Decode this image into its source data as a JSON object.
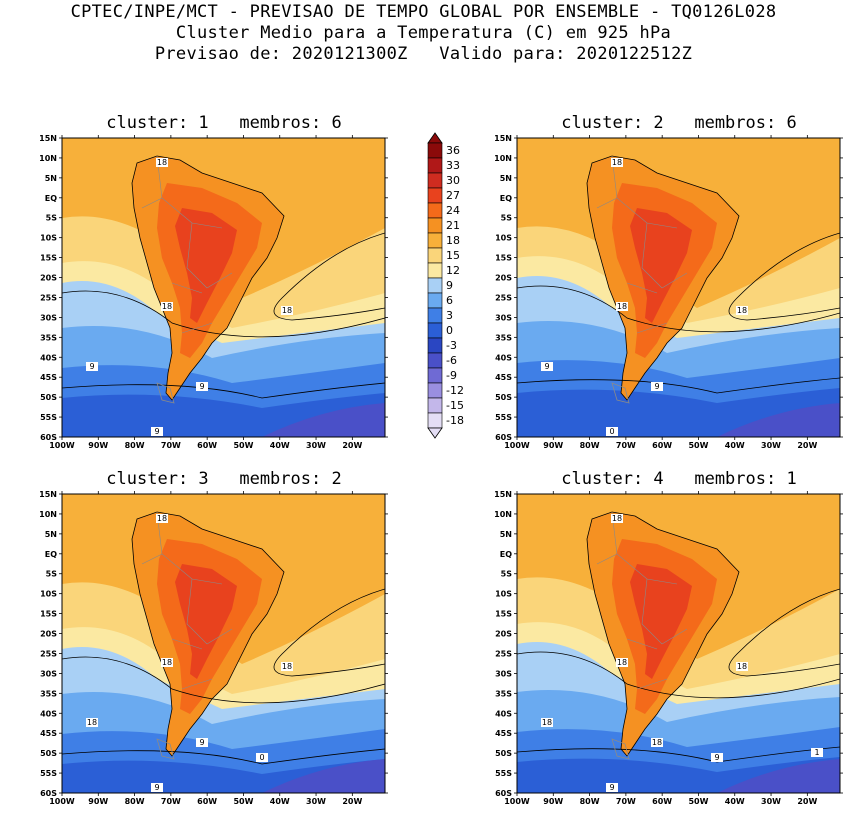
{
  "header": {
    "line1": "CPTEC/INPE/MCT - PREVISAO DE TEMPO GLOBAL POR ENSEMBLE - TQ0126L028",
    "line2": "Cluster Medio para a Temperatura (C) em 925 hPa",
    "line3": "Previsao de: 2020121300Z   Valido para: 2020122512Z"
  },
  "axes": {
    "lat_labels": [
      "15N",
      "10N",
      "5N",
      "EQ",
      "5S",
      "10S",
      "15S",
      "20S",
      "25S",
      "30S",
      "35S",
      "40S",
      "45S",
      "50S",
      "55S",
      "60S"
    ],
    "lon_labels": [
      "100W",
      "90W",
      "80W",
      "70W",
      "60W",
      "50W",
      "40W",
      "30W",
      "20W"
    ]
  },
  "colorbar": {
    "levels": [
      "36",
      "33",
      "30",
      "27",
      "24",
      "21",
      "18",
      "15",
      "12",
      "9",
      "6",
      "3",
      "0",
      "-3",
      "-6",
      "-9",
      "-12",
      "-15",
      "-18"
    ],
    "colors": [
      "#8b0a0a",
      "#b01818",
      "#cf2c20",
      "#e8421e",
      "#f46a1a",
      "#f59122",
      "#f7b03a",
      "#fad57a",
      "#fbe9a2",
      "#a9d0f5",
      "#6aaaf0",
      "#3f7fe6",
      "#2b5fd6",
      "#2a46c2",
      "#4a50c8",
      "#6f6ad4",
      "#9a8fe0",
      "#c3b7ea",
      "#e4def5"
    ]
  },
  "panels": [
    {
      "title": "cluster: 1   membros: 6",
      "labels": [
        "18",
        "18",
        "18",
        "9",
        "9",
        "9"
      ]
    },
    {
      "title": "cluster: 2   membros: 6",
      "labels": [
        "18",
        "18",
        "18",
        "9",
        "9",
        "0"
      ]
    },
    {
      "title": "cluster: 3   membros: 2",
      "labels": [
        "18",
        "18",
        "18",
        "18",
        "9",
        "9",
        "0"
      ]
    },
    {
      "title": "cluster: 4   membros: 1",
      "labels": [
        "18",
        "18",
        "18",
        "18",
        "18",
        "9",
        "9",
        "1"
      ]
    }
  ]
}
